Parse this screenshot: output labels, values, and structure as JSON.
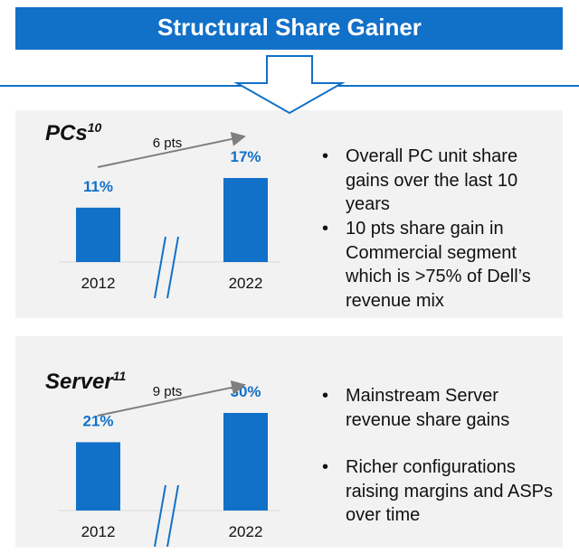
{
  "title": "Structural Share Gainer",
  "chart_data": [
    {
      "type": "bar",
      "title": "PCs",
      "title_superscript": "10",
      "categories": [
        "2012",
        "2022"
      ],
      "values": [
        11,
        17
      ],
      "value_labels": [
        "11%",
        "17%"
      ],
      "annotation": "6 pts",
      "color": "#1170c8",
      "bullets": [
        "Overall PC unit share gains over the last 10 years",
        "10 pts share gain in Commercial segment which is >75% of Dell’s revenue mix"
      ]
    },
    {
      "type": "bar",
      "title": "Server",
      "title_superscript": "11",
      "categories": [
        "2012",
        "2022"
      ],
      "values": [
        21,
        30
      ],
      "value_labels": [
        "21%",
        "30%"
      ],
      "annotation": "9 pts",
      "color": "#1170c8",
      "bullets": [
        "Mainstream Server revenue share gains",
        "Richer configurations raising margins and ASPs over time"
      ]
    }
  ]
}
